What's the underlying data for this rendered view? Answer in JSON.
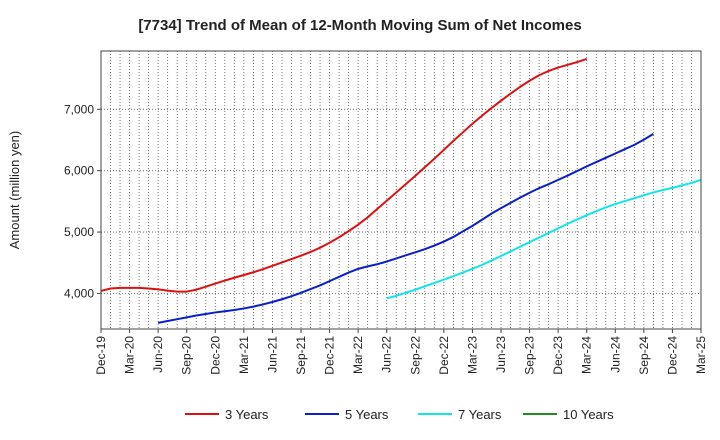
{
  "chart_data": {
    "type": "line",
    "title": "[7734]  Trend of Mean of 12-Month Moving Sum of Net Incomes",
    "ylabel": "Amount (million yen)",
    "xlabel": "",
    "x_ticks": [
      "Dec-19",
      "Mar-20",
      "Jun-20",
      "Sep-20",
      "Dec-20",
      "Mar-21",
      "Jun-21",
      "Sep-21",
      "Dec-21",
      "Mar-22",
      "Jun-22",
      "Sep-22",
      "Dec-22",
      "Mar-23",
      "Jun-23",
      "Sep-23",
      "Dec-23",
      "Mar-24",
      "Jun-24",
      "Sep-24",
      "Dec-24",
      "Mar-25"
    ],
    "y_ticks": [
      4000,
      5000,
      6000,
      7000
    ],
    "y_tick_labels": [
      "4,000",
      "5,000",
      "6,000",
      "7,000"
    ],
    "ylim": [
      3420,
      7950
    ],
    "grid": true,
    "legend_position": "bottom",
    "series": [
      {
        "name": "3 Years",
        "color": "#dd1111",
        "start_index": 0,
        "values": [
          4040,
          4080,
          4090,
          4090,
          4090,
          4080,
          4065,
          4045,
          4030,
          4030,
          4060,
          4110,
          4160,
          4210,
          4255,
          4300,
          4345,
          4395,
          4450,
          4505,
          4560,
          4615,
          4675,
          4745,
          4825,
          4915,
          5015,
          5120,
          5240,
          5375,
          5510,
          5645,
          5780,
          5915,
          6055,
          6195,
          6340,
          6485,
          6625,
          6765,
          6895,
          7020,
          7140,
          7255,
          7365,
          7465,
          7555,
          7625,
          7680,
          7725,
          7770,
          7820
        ]
      },
      {
        "name": "5 Years",
        "color": "#0a1ecc",
        "start_index": 6,
        "values": [
          3520,
          3550,
          3580,
          3610,
          3640,
          3665,
          3690,
          3710,
          3730,
          3755,
          3785,
          3820,
          3860,
          3905,
          3955,
          4010,
          4070,
          4130,
          4200,
          4270,
          4340,
          4400,
          4440,
          4475,
          4520,
          4570,
          4620,
          4670,
          4720,
          4780,
          4845,
          4920,
          5010,
          5100,
          5200,
          5300,
          5390,
          5475,
          5560,
          5640,
          5715,
          5780,
          5850,
          5920,
          5995,
          6070,
          6140,
          6210,
          6280,
          6350,
          6420,
          6505,
          6600
        ]
      },
      {
        "name": "7 Years",
        "color": "#11e5e5",
        "start_index": 30,
        "values": [
          3920,
          3960,
          4010,
          4060,
          4115,
          4170,
          4225,
          4280,
          4340,
          4400,
          4465,
          4535,
          4610,
          4685,
          4760,
          4835,
          4910,
          4985,
          5060,
          5135,
          5205,
          5275,
          5340,
          5400,
          5455,
          5505,
          5550,
          5600,
          5645,
          5685,
          5720,
          5760,
          5800,
          5850
        ]
      },
      {
        "name": "10 Years",
        "color": "#228b22",
        "start_index": 0,
        "values": []
      }
    ]
  }
}
